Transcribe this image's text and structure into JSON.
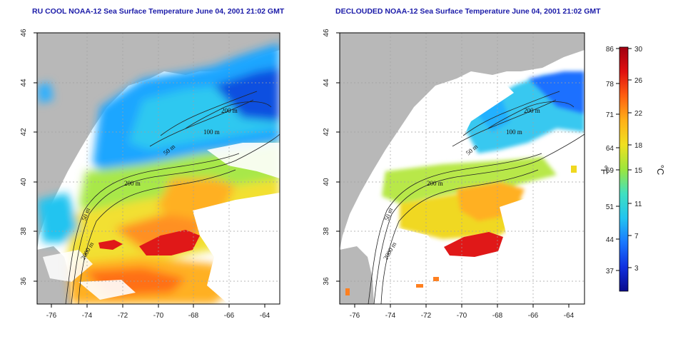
{
  "panels": [
    {
      "title": "RU COOL NOAA-12 Sea Surface Temperature June 04, 2001 21:02 GMT",
      "contour_labels": [
        "200 m",
        "100 m",
        "50 m",
        "200 m",
        "50 m",
        "2000 m"
      ]
    },
    {
      "title": "DECLOUDED NOAA-12 Sea Surface Temperature June 04, 2001 21:02 GMT",
      "contour_labels": [
        "200 m",
        "100 m",
        "50 m",
        "200 m",
        "50 m",
        "2000 m"
      ]
    }
  ],
  "axes": {
    "lon_ticks": [
      "-76",
      "-74",
      "-72",
      "-70",
      "-68",
      "-66",
      "-64"
    ],
    "lat_ticks": [
      "46",
      "44",
      "42",
      "40",
      "38",
      "36"
    ]
  },
  "colorbar": {
    "fahrenheit_ticks": [
      "86",
      "78",
      "71",
      "64",
      "59",
      "51",
      "44",
      "37"
    ],
    "celsius_ticks": [
      "30",
      "26",
      "22",
      "18",
      "15",
      "11",
      "7",
      "3"
    ],
    "fahrenheit_label": "°F",
    "celsius_label": "°C",
    "colors": [
      "#0a0a8c",
      "#1030e0",
      "#1a78ff",
      "#22c4f0",
      "#40e0c0",
      "#9ce63c",
      "#f0e020",
      "#ffb018",
      "#ff6010",
      "#e01010",
      "#a00010"
    ]
  },
  "legend_colors": {
    "land": "#b8b8b8",
    "cloud": "#ffffff",
    "grid": "#a0a0a0"
  }
}
